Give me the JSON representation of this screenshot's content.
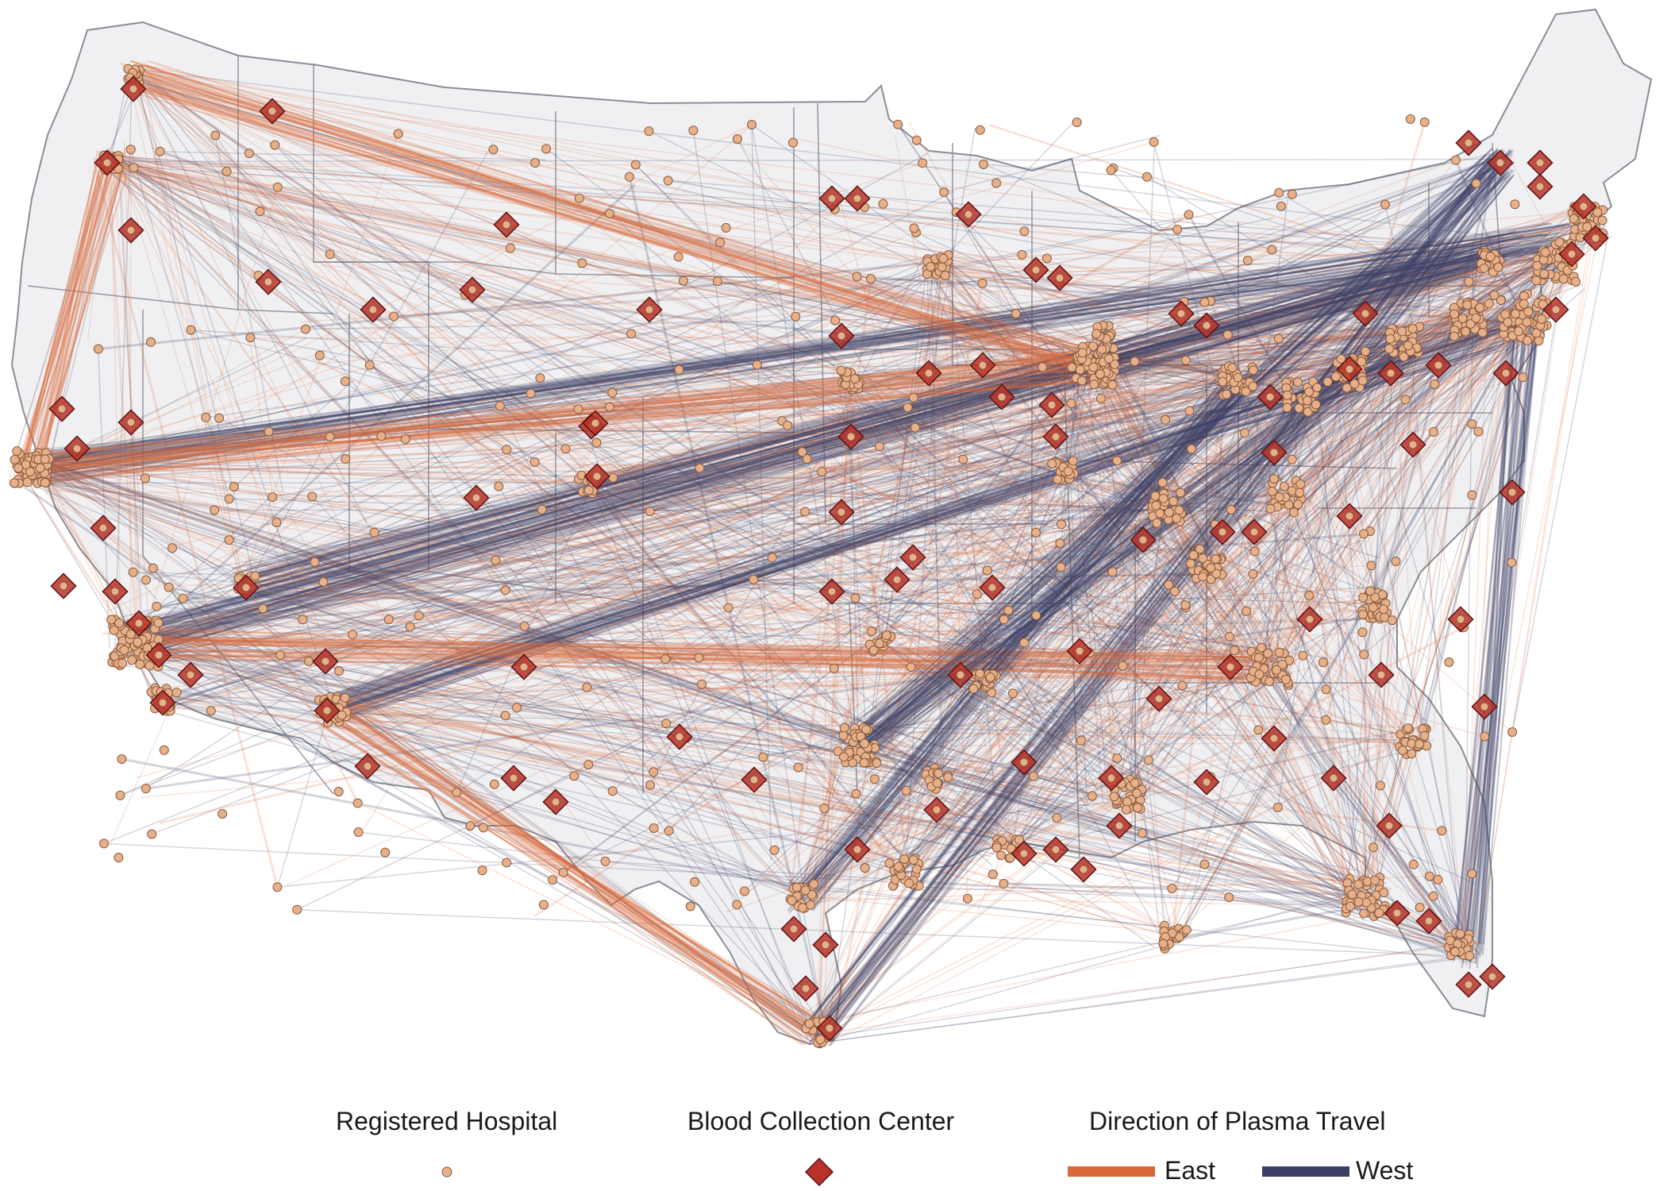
{
  "colors": {
    "background": "#ffffff",
    "land_fill": "#f0f0f2",
    "state_border": "#8a8d96",
    "east_flow": "#d9693a",
    "west_flow": "#3c4066",
    "hospital_fill": "#e6b08a",
    "hospital_stroke": "#8a5a3c",
    "center_fill": "#b8322a",
    "center_stroke": "#5a1410"
  },
  "legend": {
    "hospital_title": "Registered Hospital",
    "center_title": "Blood Collection Center",
    "direction_title": "Direction of Plasma Travel",
    "east_label": "East",
    "west_label": "West"
  },
  "icons": {
    "hospital": "circle-marker-icon",
    "center": "diamond-marker-icon"
  }
}
